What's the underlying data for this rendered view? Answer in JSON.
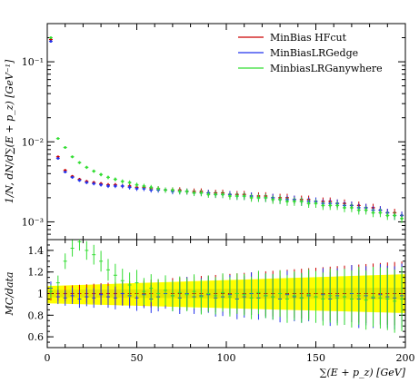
{
  "chart_data": {
    "type": "scatter",
    "panels": [
      {
        "name": "main",
        "ylabel": "1/N, dN/d∑(E + p_z) [GeV⁻¹]",
        "yscale": "log",
        "ylim": [
          0.0006,
          0.3
        ],
        "xlim": [
          0,
          200
        ],
        "yticks": [
          {
            "v": 0.1,
            "label": "10⁻¹"
          },
          {
            "v": 0.01,
            "label": "10⁻²"
          },
          {
            "v": 0.001,
            "label": "10⁻³"
          }
        ]
      },
      {
        "name": "ratio",
        "ylabel": "MC/data",
        "yscale": "linear",
        "ylim": [
          0.5,
          1.5
        ],
        "xlim": [
          0,
          200
        ],
        "yticks": [
          {
            "v": 0.6,
            "label": "0.6"
          },
          {
            "v": 0.8,
            "label": "0.8"
          },
          {
            "v": 1.0,
            "label": "1"
          },
          {
            "v": 1.2,
            "label": "1.2"
          },
          {
            "v": 1.4,
            "label": "1.4"
          }
        ],
        "band_color": "#ffff00",
        "band_inner_color": "#cccc00"
      }
    ],
    "xlabel": "∑(E + p_z) [GeV]",
    "xticks": [
      {
        "v": 0,
        "label": "0"
      },
      {
        "v": 50,
        "label": "50"
      },
      {
        "v": 100,
        "label": "100"
      },
      {
        "v": 150,
        "label": "150"
      },
      {
        "v": 200,
        "label": "200"
      }
    ],
    "legend_position": "top-right",
    "series": [
      {
        "name": "MinBias HFcut",
        "color": "#cc0000",
        "x": [
          2,
          6,
          10,
          14,
          18,
          22,
          26,
          30,
          34,
          38,
          42,
          46,
          50,
          54,
          58,
          62,
          66,
          70,
          74,
          78,
          82,
          86,
          90,
          94,
          98,
          102,
          106,
          110,
          114,
          118,
          122,
          126,
          130,
          134,
          138,
          142,
          146,
          150,
          154,
          158,
          162,
          166,
          170,
          174,
          178,
          182,
          186,
          190,
          194,
          198
        ],
        "y": [
          0.19,
          0.0065,
          0.0044,
          0.0037,
          0.0034,
          0.0032,
          0.0031,
          0.003,
          0.0029,
          0.0029,
          0.0028,
          0.0028,
          0.0027,
          0.0027,
          0.0026,
          0.0026,
          0.0025,
          0.0025,
          0.0025,
          0.0024,
          0.0024,
          0.0024,
          0.0023,
          0.0023,
          0.0023,
          0.0022,
          0.0022,
          0.0022,
          0.0021,
          0.0021,
          0.0021,
          0.002,
          0.002,
          0.002,
          0.0019,
          0.0019,
          0.0019,
          0.0018,
          0.0018,
          0.0018,
          0.0017,
          0.0017,
          0.0016,
          0.0016,
          0.0015,
          0.0015,
          0.0014,
          0.0013,
          0.0013,
          0.0012
        ]
      },
      {
        "name": "MinBiasLRGedge",
        "color": "#2233ee",
        "x": [
          2,
          6,
          10,
          14,
          18,
          22,
          26,
          30,
          34,
          38,
          42,
          46,
          50,
          54,
          58,
          62,
          66,
          70,
          74,
          78,
          82,
          86,
          90,
          94,
          98,
          102,
          106,
          110,
          114,
          118,
          122,
          126,
          130,
          134,
          138,
          142,
          146,
          150,
          154,
          158,
          162,
          166,
          170,
          174,
          178,
          182,
          186,
          190,
          194,
          198
        ],
        "y": [
          0.18,
          0.0062,
          0.0042,
          0.0036,
          0.0033,
          0.0031,
          0.003,
          0.0029,
          0.0028,
          0.0028,
          0.0028,
          0.0027,
          0.0026,
          0.0026,
          0.0025,
          0.0025,
          0.0025,
          0.0024,
          0.0024,
          0.0024,
          0.0023,
          0.0023,
          0.0023,
          0.0022,
          0.0022,
          0.0022,
          0.0021,
          0.0021,
          0.0021,
          0.002,
          0.002,
          0.002,
          0.0019,
          0.0019,
          0.0019,
          0.0018,
          0.0018,
          0.0018,
          0.0017,
          0.0017,
          0.0017,
          0.0016,
          0.0016,
          0.0015,
          0.0015,
          0.0014,
          0.0014,
          0.0013,
          0.0012,
          0.0012
        ]
      },
      {
        "name": "MinbiasLRGanywhere",
        "color": "#33dd33",
        "x": [
          2,
          6,
          10,
          14,
          18,
          22,
          26,
          30,
          34,
          38,
          42,
          46,
          50,
          54,
          58,
          62,
          66,
          70,
          74,
          78,
          82,
          86,
          90,
          94,
          98,
          102,
          106,
          110,
          114,
          118,
          122,
          126,
          130,
          134,
          138,
          142,
          146,
          150,
          154,
          158,
          162,
          166,
          170,
          174,
          178,
          182,
          186,
          190,
          194,
          198
        ],
        "y": [
          0.2,
          0.011,
          0.0085,
          0.0065,
          0.0055,
          0.0048,
          0.0043,
          0.0039,
          0.0036,
          0.0034,
          0.0032,
          0.0031,
          0.0029,
          0.0028,
          0.0027,
          0.0026,
          0.0025,
          0.0025,
          0.0024,
          0.0024,
          0.0023,
          0.0023,
          0.0022,
          0.0022,
          0.0022,
          0.0021,
          0.0021,
          0.0021,
          0.002,
          0.002,
          0.002,
          0.0019,
          0.0019,
          0.0018,
          0.0018,
          0.0018,
          0.0017,
          0.0017,
          0.0016,
          0.0016,
          0.0016,
          0.0015,
          0.0015,
          0.0014,
          0.0014,
          0.0013,
          0.0013,
          0.0012,
          0.0012,
          0.0011
        ]
      }
    ],
    "ratio_series": [
      {
        "name": "MinBias HFcut",
        "color": "#cc0000",
        "x": [
          2,
          6,
          10,
          14,
          18,
          22,
          26,
          30,
          34,
          38,
          42,
          46,
          50,
          54,
          58,
          62,
          66,
          70,
          74,
          78,
          82,
          86,
          90,
          94,
          98,
          102,
          106,
          110,
          114,
          118,
          122,
          126,
          130,
          134,
          138,
          142,
          146,
          150,
          154,
          158,
          162,
          166,
          170,
          174,
          178,
          182,
          186,
          190,
          194,
          198
        ],
        "y": [
          1.0,
          1.0,
          1.0,
          1.0,
          1.0,
          1.0,
          1.0,
          1.0,
          1.0,
          1.0,
          1.0,
          1.0,
          1.0,
          1.0,
          1.0,
          1.0,
          1.0,
          1.0,
          1.0,
          1.0,
          1.0,
          1.0,
          1.0,
          1.0,
          1.0,
          1.0,
          1.0,
          1.0,
          1.0,
          1.0,
          1.0,
          1.0,
          1.0,
          1.0,
          1.0,
          1.0,
          1.0,
          1.0,
          1.0,
          1.0,
          1.0,
          1.0,
          1.0,
          1.0,
          1.0,
          1.0,
          1.0,
          1.0,
          1.0,
          1.0
        ]
      },
      {
        "name": "MinBiasLRGedge",
        "color": "#2233ee",
        "x": [
          2,
          6,
          10,
          14,
          18,
          22,
          26,
          30,
          34,
          38,
          42,
          46,
          50,
          54,
          58,
          62,
          66,
          70,
          74,
          78,
          82,
          86,
          90,
          94,
          98,
          102,
          106,
          110,
          114,
          118,
          122,
          126,
          130,
          134,
          138,
          142,
          146,
          150,
          154,
          158,
          162,
          166,
          170,
          174,
          178,
          182,
          186,
          190,
          194,
          198
        ],
        "y": [
          1.05,
          0.97,
          0.96,
          0.98,
          0.95,
          0.97,
          0.96,
          0.99,
          0.97,
          0.96,
          1.0,
          0.98,
          0.96,
          0.99,
          0.95,
          0.97,
          1.0,
          0.98,
          0.96,
          1.0,
          0.97,
          0.98,
          0.99,
          0.96,
          0.97,
          0.99,
          0.95,
          0.97,
          1.0,
          0.96,
          0.98,
          0.97,
          0.95,
          0.99,
          0.97,
          0.96,
          0.98,
          0.97,
          0.99,
          0.95,
          0.98,
          0.97,
          1.0,
          0.95,
          0.98,
          0.96,
          0.99,
          0.97,
          0.96,
          0.98
        ]
      },
      {
        "name": "MinbiasLRGanywhere",
        "color": "#33dd33",
        "x": [
          2,
          6,
          10,
          14,
          18,
          22,
          26,
          30,
          34,
          38,
          42,
          46,
          50,
          54,
          58,
          62,
          66,
          70,
          74,
          78,
          82,
          86,
          90,
          94,
          98,
          102,
          106,
          110,
          114,
          118,
          122,
          126,
          130,
          134,
          138,
          142,
          146,
          150,
          154,
          158,
          162,
          166,
          170,
          174,
          178,
          182,
          186,
          190,
          194,
          198
        ],
        "y": [
          1.02,
          1.1,
          1.3,
          1.42,
          1.48,
          1.4,
          1.36,
          1.3,
          1.22,
          1.17,
          1.12,
          1.08,
          1.1,
          1.02,
          1.05,
          1.0,
          1.03,
          0.98,
          1.01,
          0.99,
          1.02,
          0.97,
          1.0,
          0.98,
          1.01,
          0.97,
          1.0,
          0.99,
          0.96,
          1.01,
          0.98,
          0.97,
          1.0,
          0.95,
          0.98,
          0.96,
          0.99,
          0.97,
          0.95,
          0.98,
          0.96,
          0.97,
          0.95,
          0.98,
          0.94,
          0.97,
          0.96,
          0.95,
          0.93,
          0.95
        ]
      }
    ]
  }
}
